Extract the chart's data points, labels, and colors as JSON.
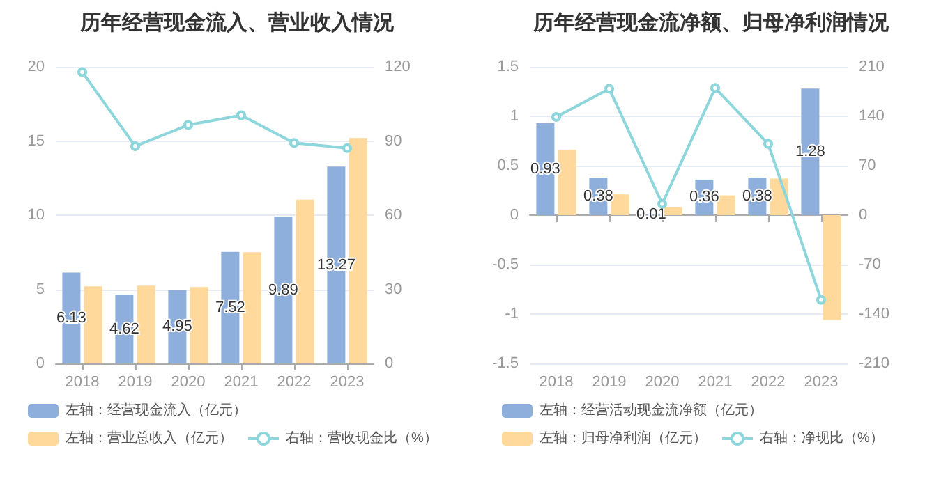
{
  "chart_data": [
    {
      "type": "bar",
      "title": "历年经营现金流入、营业收入情况",
      "categories": [
        "2018",
        "2019",
        "2020",
        "2021",
        "2022",
        "2023"
      ],
      "series": [
        {
          "name": "左轴：经营现金流入（亿元）",
          "color": "#8eaedb",
          "values": [
            6.13,
            4.62,
            4.95,
            7.52,
            9.89,
            13.27
          ],
          "value_labels": [
            "6.13",
            "4.62",
            "4.95",
            "7.52",
            "9.89",
            "13.27"
          ]
        },
        {
          "name": "左轴：营业总收入（亿元）",
          "color": "#fed99b",
          "values": [
            5.2,
            5.25,
            5.15,
            7.5,
            11.05,
            15.2
          ]
        },
        {
          "name": "右轴：营收现金比（%）",
          "type": "line",
          "axis": "y2",
          "color": "#8dd6dc",
          "marker": "circle",
          "values": [
            117.9,
            87.9,
            96.5,
            100.4,
            89.2,
            87.1
          ]
        }
      ],
      "ylim": [
        0,
        20
      ],
      "yticks": [
        0,
        5,
        10,
        15,
        20
      ],
      "y2lim": [
        0,
        120
      ],
      "y2ticks": [
        0,
        30,
        60,
        90,
        120
      ],
      "grid": "y",
      "legend": "bottom left"
    },
    {
      "type": "bar",
      "title": "历年经营现金流净额、归母净利润情况",
      "categories": [
        "2018",
        "2019",
        "2020",
        "2021",
        "2022",
        "2023"
      ],
      "series": [
        {
          "name": "左轴：经营活动现金流净额（亿元）",
          "color": "#8eaedb",
          "values": [
            0.93,
            0.38,
            0.01,
            0.36,
            0.38,
            1.28
          ],
          "value_labels": [
            "0.93",
            "0.38",
            "0.01",
            "0.36",
            "0.38",
            "1.28"
          ]
        },
        {
          "name": "左轴：归母净利润（亿元）",
          "color": "#fed99b",
          "values": [
            0.66,
            0.21,
            0.08,
            0.2,
            0.37,
            -1.06
          ]
        },
        {
          "name": "右轴：净现比（%）",
          "type": "line",
          "axis": "y2",
          "color": "#8dd6dc",
          "marker": "circle",
          "values": [
            139,
            179,
            16,
            180,
            101,
            -120
          ]
        }
      ],
      "ylim": [
        -1.5,
        1.5
      ],
      "yticks": [
        -1.5,
        -1,
        -0.5,
        0,
        0.5,
        1,
        1.5
      ],
      "y2lim": [
        -210,
        210
      ],
      "y2ticks": [
        -210,
        -140,
        -70,
        0,
        70,
        140,
        210
      ],
      "grid": "y",
      "legend": "bottom left"
    }
  ]
}
